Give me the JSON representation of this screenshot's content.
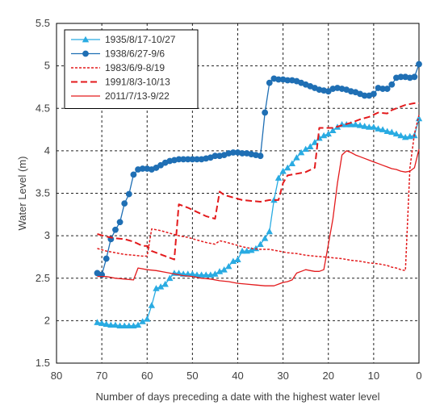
{
  "chart_data": {
    "type": "line",
    "xlabel": "Number of days preceding a date with the highest water level",
    "ylabel": "Water Level (m)",
    "xlim": [
      80,
      0
    ],
    "ylim": [
      1.5,
      5.5
    ],
    "xticks": [
      80,
      70,
      60,
      50,
      40,
      30,
      20,
      10,
      0
    ],
    "yticks": [
      1.5,
      2,
      2.5,
      3,
      3.5,
      4,
      4.5,
      5,
      5.5
    ],
    "xtick_labels": [
      "80",
      "70",
      "60",
      "50",
      "40",
      "30",
      "20",
      "10",
      "0"
    ],
    "ytick_labels": [
      "1.5",
      "2",
      "2.5",
      "3",
      "3.5",
      "4",
      "4.5",
      "5",
      "5.5"
    ],
    "grid": true,
    "legend_position": "top-left",
    "series": [
      {
        "name": "1935/8/17-10/27",
        "color": "#29abe2",
        "style": "solid",
        "marker": "triangle",
        "x": [
          71,
          70,
          69,
          68,
          67,
          66,
          65,
          64,
          63,
          62,
          61,
          60,
          59,
          58,
          57,
          56,
          55,
          54,
          53,
          52,
          51,
          50,
          49,
          48,
          47,
          46,
          45,
          44,
          43,
          42,
          41,
          40,
          39,
          38,
          37,
          36,
          35,
          34,
          33,
          32,
          31,
          30,
          29,
          28,
          27,
          26,
          25,
          24,
          23,
          22,
          21,
          20,
          19,
          18,
          17,
          16,
          15,
          14,
          13,
          12,
          11,
          10,
          9,
          8,
          7,
          6,
          5,
          4,
          3,
          2,
          1,
          0
        ],
        "y": [
          1.98,
          1.97,
          1.96,
          1.95,
          1.95,
          1.94,
          1.94,
          1.94,
          1.94,
          1.95,
          1.99,
          2.02,
          2.18,
          2.38,
          2.4,
          2.43,
          2.5,
          2.56,
          2.56,
          2.55,
          2.55,
          2.55,
          2.54,
          2.54,
          2.54,
          2.54,
          2.55,
          2.58,
          2.6,
          2.64,
          2.7,
          2.72,
          2.82,
          2.82,
          2.83,
          2.85,
          2.9,
          2.97,
          3.05,
          3.42,
          3.68,
          3.76,
          3.8,
          3.85,
          3.92,
          3.98,
          4.02,
          4.05,
          4.1,
          4.15,
          4.18,
          4.2,
          4.24,
          4.28,
          4.31,
          4.31,
          4.31,
          4.31,
          4.3,
          4.29,
          4.28,
          4.28,
          4.26,
          4.25,
          4.23,
          4.22,
          4.2,
          4.18,
          4.16,
          4.17,
          4.18,
          4.38
        ]
      },
      {
        "name": "1938/6/27-9/6",
        "color": "#1f6fb4",
        "style": "solid",
        "marker": "circle",
        "x": [
          71,
          70,
          69,
          68,
          67,
          66,
          65,
          64,
          63,
          62,
          61,
          60,
          59,
          58,
          57,
          56,
          55,
          54,
          53,
          52,
          51,
          50,
          49,
          48,
          47,
          46,
          45,
          44,
          43,
          42,
          41,
          40,
          39,
          38,
          37,
          36,
          35,
          34,
          33,
          32,
          31,
          30,
          29,
          28,
          27,
          26,
          25,
          24,
          23,
          22,
          21,
          20,
          19,
          18,
          17,
          16,
          15,
          14,
          13,
          12,
          11,
          10,
          9,
          8,
          7,
          6,
          5,
          4,
          3,
          2,
          1,
          0
        ],
        "y": [
          2.56,
          2.54,
          2.73,
          2.96,
          3.07,
          3.16,
          3.38,
          3.49,
          3.72,
          3.78,
          3.79,
          3.79,
          3.78,
          3.8,
          3.83,
          3.86,
          3.88,
          3.89,
          3.9,
          3.9,
          3.9,
          3.9,
          3.9,
          3.9,
          3.91,
          3.92,
          3.94,
          3.94,
          3.95,
          3.97,
          3.98,
          3.98,
          3.97,
          3.97,
          3.96,
          3.95,
          3.94,
          4.45,
          4.8,
          4.85,
          4.84,
          4.84,
          4.83,
          4.83,
          4.82,
          4.8,
          4.78,
          4.76,
          4.74,
          4.72,
          4.71,
          4.7,
          4.73,
          4.74,
          4.73,
          4.72,
          4.7,
          4.69,
          4.67,
          4.65,
          4.65,
          4.67,
          4.74,
          4.73,
          4.73,
          4.78,
          4.86,
          4.87,
          4.87,
          4.86,
          4.87,
          5.02
        ]
      },
      {
        "name": "1983/6/9-8/19",
        "color": "#e31a1c",
        "style": "dotted",
        "marker": "none",
        "x": [
          71,
          69,
          67,
          65,
          63,
          61,
          60,
          59,
          57,
          55,
          53,
          51,
          49,
          47,
          45,
          44,
          43,
          41,
          39,
          37,
          35,
          33,
          31,
          29,
          27,
          25,
          23,
          21,
          19,
          17,
          15,
          13,
          11,
          9,
          7,
          6,
          5,
          4,
          3,
          2,
          1,
          0
        ],
        "y": [
          2.85,
          2.82,
          2.8,
          2.78,
          2.77,
          2.76,
          2.76,
          3.08,
          3.06,
          3.03,
          3,
          2.98,
          2.95,
          2.92,
          2.9,
          2.94,
          2.93,
          2.9,
          2.87,
          2.85,
          2.84,
          2.84,
          2.82,
          2.8,
          2.79,
          2.77,
          2.76,
          2.75,
          2.74,
          2.73,
          2.71,
          2.7,
          2.68,
          2.67,
          2.65,
          2.63,
          2.62,
          2.6,
          2.59,
          3.8,
          4.2,
          4.42
        ]
      },
      {
        "name": "1991/8/3-10/13",
        "color": "#e31a1c",
        "style": "dashed",
        "marker": "none",
        "x": [
          71,
          69,
          67,
          65,
          63,
          61,
          60,
          59,
          57,
          55,
          54,
          53,
          51,
          49,
          47,
          45,
          44,
          43,
          41,
          39,
          37,
          35,
          33,
          31,
          30,
          29,
          27,
          25,
          23,
          22,
          21,
          19,
          17,
          15,
          13,
          11,
          9,
          7,
          6,
          5,
          3,
          1,
          0
        ],
        "y": [
          3.02,
          2.99,
          2.97,
          2.96,
          2.93,
          2.88,
          2.88,
          2.82,
          2.78,
          2.74,
          2.72,
          3.37,
          3.33,
          3.28,
          3.23,
          3.2,
          3.52,
          3.48,
          3.45,
          3.42,
          3.41,
          3.4,
          3.42,
          3.42,
          3.62,
          3.71,
          3.73,
          3.75,
          3.8,
          4.27,
          4.27,
          4.27,
          4.3,
          4.33,
          4.37,
          4.4,
          4.45,
          4.44,
          4.48,
          4.5,
          4.54,
          4.56,
          4.56
        ]
      },
      {
        "name": "2011/7/13-9/22",
        "color": "#e31a1c",
        "style": "solid",
        "marker": "none",
        "x": [
          71,
          70,
          69,
          67,
          65,
          63,
          62,
          60,
          58,
          56,
          54,
          52,
          50,
          48,
          46,
          44,
          42,
          40,
          38,
          36,
          34,
          32,
          31,
          30,
          29,
          28,
          27,
          26,
          25,
          24,
          23,
          22,
          21,
          20,
          19,
          18,
          17,
          16,
          15,
          14,
          13,
          12,
          11,
          10,
          9,
          8,
          7,
          6,
          5,
          4,
          3,
          2,
          1,
          0
        ],
        "y": [
          2.52,
          2.52,
          2.52,
          2.5,
          2.49,
          2.48,
          2.62,
          2.6,
          2.59,
          2.57,
          2.55,
          2.53,
          2.52,
          2.5,
          2.49,
          2.47,
          2.46,
          2.44,
          2.43,
          2.42,
          2.41,
          2.41,
          2.43,
          2.45,
          2.46,
          2.48,
          2.56,
          2.58,
          2.6,
          2.59,
          2.58,
          2.58,
          2.6,
          2.9,
          3.2,
          3.62,
          3.95,
          4.0,
          3.98,
          3.95,
          3.93,
          3.91,
          3.89,
          3.87,
          3.85,
          3.83,
          3.81,
          3.79,
          3.78,
          3.76,
          3.75,
          3.76,
          3.8,
          4.02
        ]
      }
    ]
  }
}
